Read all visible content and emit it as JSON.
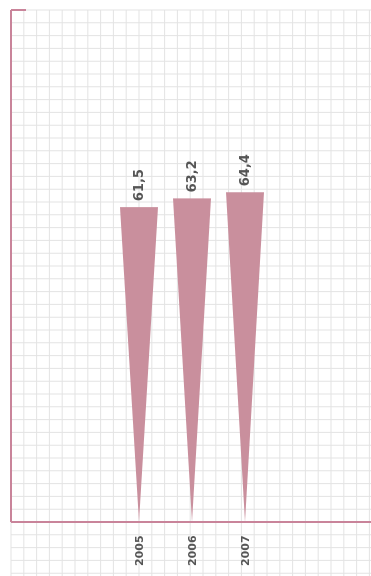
{
  "chart_data": {
    "type": "bar",
    "categories": [
      "2005",
      "2006",
      "2007"
    ],
    "values": [
      61.5,
      63.2,
      64.4
    ],
    "value_labels": [
      "61,5",
      "63,2",
      "64,4"
    ],
    "bar_shape": "inverted-triangle",
    "grid": true,
    "title": "",
    "xlabel": "",
    "ylabel": "",
    "ylim": [
      0,
      100
    ]
  },
  "colors": {
    "bar": "#c98f9d",
    "axis": "#c9849a",
    "grid": "#e3e3e3",
    "label": "#555555"
  }
}
